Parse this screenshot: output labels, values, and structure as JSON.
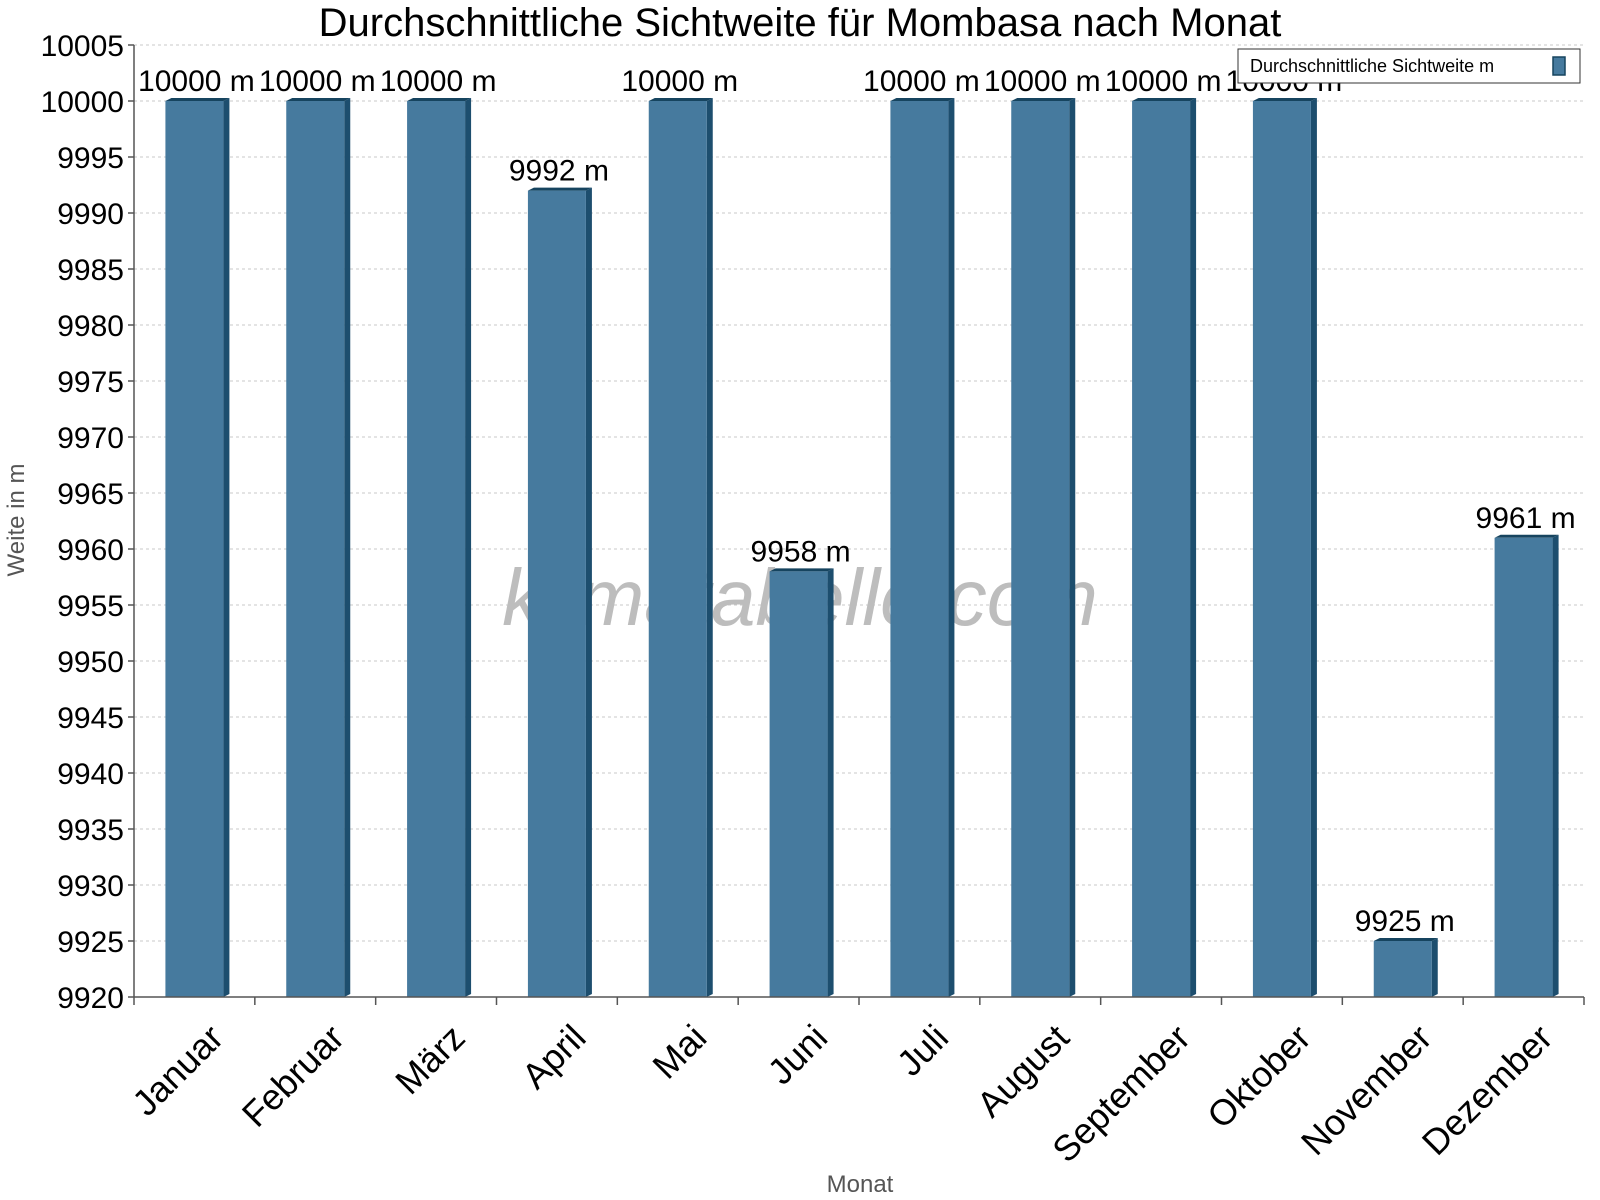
{
  "watermark": "klimatabelle.com",
  "colors": {
    "bar_front": "#467a9e",
    "bar_side": "#1d4e6e",
    "bar_top": "#16445f",
    "grid": "#c8c8c8"
  },
  "chart_data": {
    "type": "bar",
    "title": "Durchschnittliche Sichtweite für Mombasa nach Monat",
    "xlabel": "Monat",
    "ylabel": "Weite in m",
    "ylim": [
      9920,
      10005
    ],
    "ytick_step": 5,
    "grid": true,
    "legend_position": "top-right",
    "categories": [
      "Januar",
      "Februar",
      "März",
      "April",
      "Mai",
      "Juni",
      "Juli",
      "August",
      "September",
      "Oktober",
      "November",
      "Dezember"
    ],
    "series": [
      {
        "name": "Durchschnittliche Sichtweite m",
        "values": [
          10000,
          10000,
          10000,
          9992,
          10000,
          9958,
          10000,
          10000,
          10000,
          10000,
          9925,
          9961
        ],
        "data_labels": [
          "10000 m",
          "10000 m",
          "10000 m",
          "9992 m",
          "10000 m",
          "9958 m",
          "10000 m",
          "10000 m",
          "10000 m",
          "10000 m",
          "9925 m",
          "9961 m"
        ]
      }
    ]
  }
}
